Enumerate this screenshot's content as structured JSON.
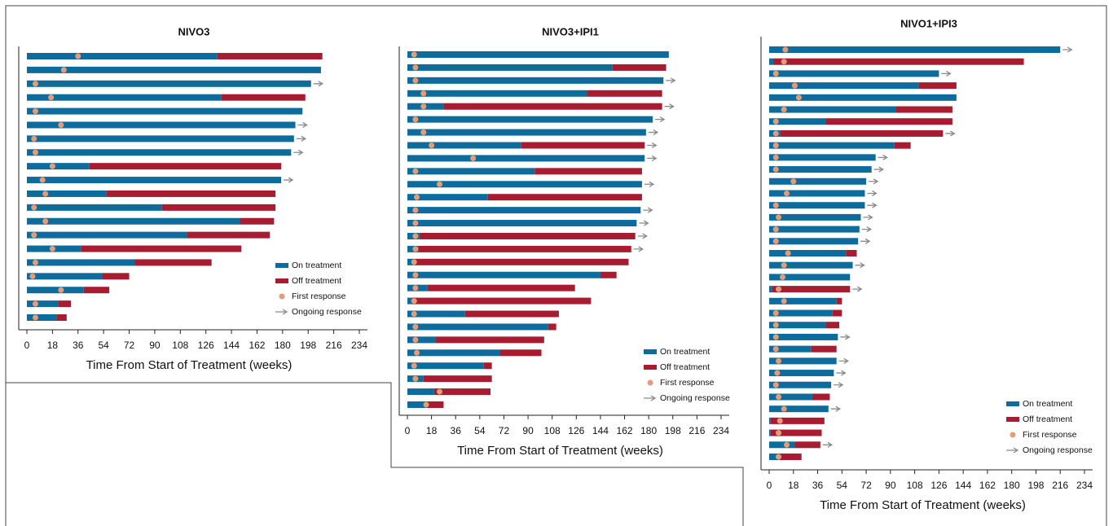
{
  "chart_data": [
    {
      "type": "swimmer",
      "title": "NIVO3",
      "xlabel": "Time From Start of Treatment (weeks)",
      "xlim": [
        0,
        234
      ],
      "xticks": [
        0,
        18,
        36,
        54,
        72,
        90,
        108,
        126,
        144,
        162,
        180,
        198,
        216,
        234
      ],
      "legend": "lower right",
      "series": [
        {
          "name": "On treatment",
          "color": "#0d6c9c",
          "values": [
            134,
            207,
            200,
            137,
            194,
            189,
            188,
            186,
            44,
            179,
            56,
            95,
            150,
            113,
            38,
            76,
            53,
            40,
            22,
            21
          ]
        },
        {
          "name": "Off treatment",
          "color": "#a81c31",
          "values": [
            74,
            null,
            null,
            59,
            null,
            null,
            null,
            null,
            135,
            null,
            119,
            80,
            24,
            58,
            113,
            54,
            19,
            18,
            9,
            7
          ]
        },
        {
          "name": "First response",
          "color": "#e59c78",
          "values": [
            36,
            26,
            6,
            17,
            6,
            24,
            5,
            6,
            18,
            11,
            13,
            5,
            13,
            5,
            18,
            6,
            4,
            24,
            6,
            6
          ]
        },
        {
          "name": "Ongoing response",
          "color": "#8a8a8a",
          "values": [
            false,
            false,
            true,
            false,
            false,
            true,
            true,
            true,
            false,
            true,
            false,
            false,
            false,
            false,
            false,
            false,
            false,
            false,
            false,
            false
          ]
        }
      ]
    },
    {
      "type": "swimmer",
      "title": "NIVO3+IPI1",
      "xlabel": "Time From Start of Treatment (weeks)",
      "xlim": [
        0,
        234
      ],
      "xticks": [
        0,
        18,
        36,
        54,
        72,
        90,
        108,
        126,
        144,
        162,
        180,
        198,
        216,
        234
      ],
      "legend": "lower right",
      "series": [
        {
          "name": "On treatment",
          "color": "#0d6c9c",
          "values": [
            195,
            153,
            191,
            134,
            27,
            183,
            178,
            85,
            177,
            95,
            175,
            60,
            174,
            171,
            9,
            8,
            5,
            144,
            15,
            3,
            43,
            105,
            21,
            69,
            57,
            12,
            20,
            14
          ]
        },
        {
          "name": "Off treatment",
          "color": "#a81c31",
          "values": [
            null,
            40,
            null,
            56,
            163,
            null,
            null,
            92,
            null,
            80,
            null,
            115,
            null,
            null,
            161,
            159,
            160,
            12,
            110,
            134,
            70,
            6,
            81,
            31,
            6,
            51,
            42,
            13
          ]
        },
        {
          "name": "First response",
          "color": "#e59c78",
          "values": [
            5,
            6,
            6,
            12,
            12,
            6,
            12,
            18,
            49,
            6,
            24,
            7,
            6,
            6,
            6,
            6,
            5,
            6,
            6,
            5,
            5,
            6,
            6,
            7,
            5,
            6,
            24,
            14
          ]
        },
        {
          "name": "Ongoing response",
          "color": "#8a8a8a",
          "values": [
            false,
            false,
            true,
            false,
            true,
            true,
            true,
            true,
            true,
            false,
            true,
            false,
            true,
            true,
            true,
            true,
            false,
            false,
            false,
            false,
            false,
            false,
            false,
            false,
            false,
            false,
            false,
            false
          ]
        }
      ]
    },
    {
      "type": "swimmer",
      "title": "NIVO1+IPI3",
      "xlabel": "Time From Start of Treatment (weeks)",
      "xlim": [
        0,
        234
      ],
      "xticks": [
        0,
        18,
        36,
        54,
        72,
        90,
        108,
        126,
        144,
        162,
        180,
        198,
        216,
        234
      ],
      "legend": "lower right",
      "series": [
        {
          "name": "On treatment",
          "color": "#0d6c9c",
          "values": [
            216,
            3,
            126,
            111,
            139,
            94,
            42,
            8,
            93,
            79,
            76,
            72,
            71,
            71,
            68,
            67,
            66,
            57,
            62,
            60,
            2,
            50,
            47,
            42,
            51,
            31,
            50,
            48,
            46,
            32,
            44,
            1,
            1,
            19,
            7
          ]
        },
        {
          "name": "Off treatment",
          "color": "#a81c31",
          "values": [
            null,
            186,
            null,
            28,
            null,
            42,
            94,
            121,
            12,
            null,
            null,
            null,
            null,
            null,
            null,
            null,
            null,
            8,
            null,
            null,
            58,
            4,
            7,
            10,
            null,
            19,
            null,
            null,
            null,
            13,
            null,
            40,
            38,
            19,
            17
          ]
        },
        {
          "name": "First response",
          "color": "#e59c78",
          "values": [
            12,
            11,
            5,
            19,
            22,
            11,
            5,
            5,
            5,
            5,
            5,
            18,
            13,
            5,
            7,
            5,
            5,
            14,
            11,
            10,
            7,
            11,
            5,
            5,
            5,
            5,
            7,
            6,
            5,
            7,
            11,
            8,
            7,
            13,
            7
          ]
        },
        {
          "name": "Ongoing response",
          "color": "#8a8a8a",
          "values": [
            true,
            false,
            true,
            false,
            false,
            false,
            false,
            true,
            false,
            true,
            true,
            true,
            true,
            true,
            true,
            true,
            true,
            false,
            true,
            false,
            true,
            false,
            false,
            false,
            true,
            false,
            true,
            true,
            true,
            false,
            true,
            false,
            false,
            true,
            false
          ]
        }
      ]
    }
  ]
}
